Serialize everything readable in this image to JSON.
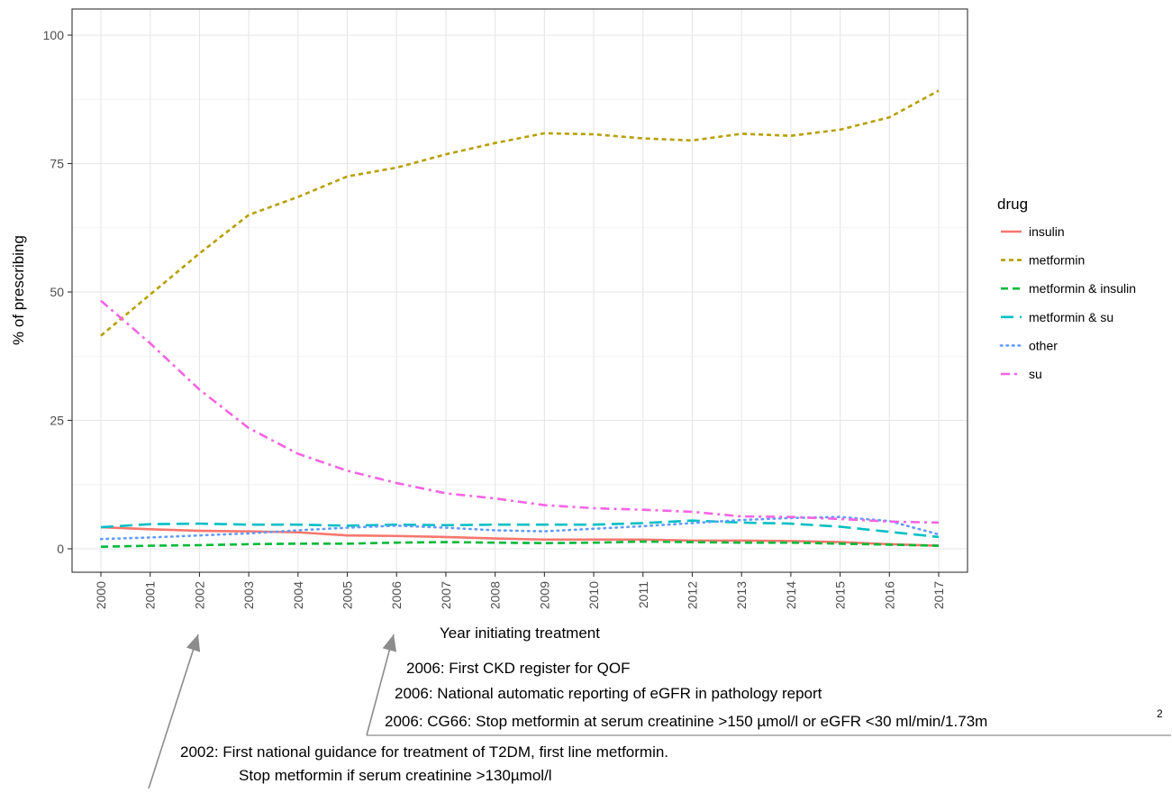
{
  "chart_data": {
    "type": "line",
    "title": "",
    "xlabel": "Year initiating treatment",
    "ylabel": "% of prescribing",
    "x": [
      2000,
      2001,
      2002,
      2003,
      2004,
      2005,
      2006,
      2007,
      2008,
      2009,
      2010,
      2011,
      2012,
      2013,
      2014,
      2015,
      2016,
      2017
    ],
    "xlim": [
      2000,
      2017
    ],
    "ylim": [
      0,
      100
    ],
    "yticks": [
      0,
      25,
      50,
      75,
      100
    ],
    "grid": true,
    "legend": {
      "title": "drug",
      "position": "right"
    },
    "series": [
      {
        "name": "insulin",
        "color": "#F8766D",
        "linestyle": "solid",
        "values": [
          4.2,
          3.8,
          3.5,
          3.4,
          3.2,
          2.6,
          2.5,
          2.3,
          2.0,
          1.8,
          1.8,
          1.8,
          1.6,
          1.6,
          1.5,
          1.3,
          0.9,
          0.6
        ]
      },
      {
        "name": "metformin",
        "color": "#B79F00",
        "linestyle": "dotted",
        "values": [
          41.5,
          49.5,
          57.5,
          65.0,
          68.5,
          72.5,
          74.2,
          76.8,
          79.0,
          80.9,
          80.7,
          79.9,
          79.5,
          80.8,
          80.4,
          81.6,
          84.0,
          89.2
        ]
      },
      {
        "name": "metformin & insulin",
        "color": "#00BA38",
        "linestyle": "dashed",
        "values": [
          0.4,
          0.6,
          0.7,
          0.9,
          1.0,
          1.0,
          1.2,
          1.3,
          1.2,
          1.1,
          1.2,
          1.4,
          1.3,
          1.2,
          1.2,
          1.0,
          0.8,
          0.6
        ]
      },
      {
        "name": "metformin & su",
        "color": "#00BFC4",
        "linestyle": "longdash",
        "values": [
          4.2,
          4.8,
          4.9,
          4.7,
          4.7,
          4.5,
          4.7,
          4.6,
          4.7,
          4.7,
          4.7,
          5.0,
          5.5,
          5.1,
          4.9,
          4.3,
          3.3,
          2.3
        ]
      },
      {
        "name": "other",
        "color": "#619CFF",
        "linestyle": "dotted-fine",
        "values": [
          1.9,
          2.2,
          2.6,
          3.0,
          3.6,
          4.1,
          4.5,
          4.1,
          3.6,
          3.4,
          3.9,
          4.4,
          5.0,
          5.6,
          6.0,
          6.2,
          5.4,
          2.8
        ]
      },
      {
        "name": "su",
        "color": "#F564E3",
        "linestyle": "dotdash",
        "values": [
          48.3,
          40.0,
          31.0,
          23.5,
          18.5,
          15.2,
          12.8,
          10.8,
          9.8,
          8.5,
          7.9,
          7.6,
          7.2,
          6.3,
          6.2,
          5.8,
          5.3,
          5.1
        ]
      }
    ],
    "annotations": [
      {
        "target_x": 2002,
        "lines": [
          "2002: First national guidance for treatment of T2DM, first line metformin.",
          "Stop metformin if serum creatinine >130µmol/l"
        ]
      },
      {
        "target_x": 2006,
        "lines": [
          "2006: First CKD register for QOF",
          "2006: National automatic reporting of eGFR in pathology report",
          "2006: CG66: Stop metformin at serum creatinine >150 µmol/l or eGFR <30 ml/min/1.73m",
          "2"
        ]
      }
    ]
  }
}
